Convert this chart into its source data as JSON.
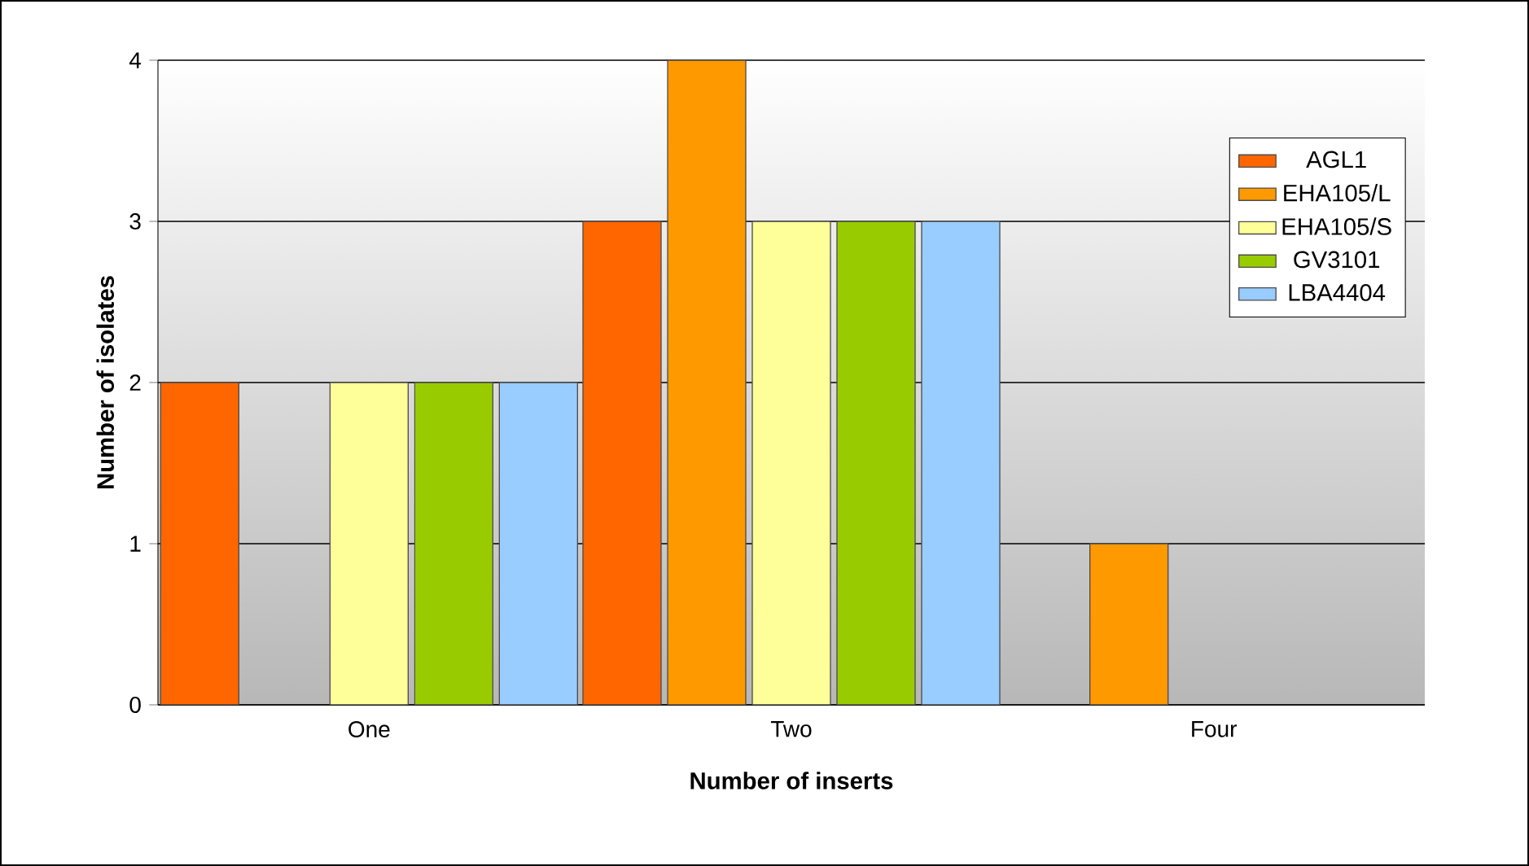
{
  "chart_data": {
    "type": "bar",
    "xlabel": "Number of inserts",
    "ylabel": "Number of isolates",
    "categories": [
      "One",
      "Two",
      "Four"
    ],
    "series": [
      {
        "name": "AGL1",
        "color": "#ff6600",
        "values": [
          2,
          3,
          null
        ]
      },
      {
        "name": "EHA105/L",
        "color": "#ff9900",
        "values": [
          null,
          4,
          1
        ]
      },
      {
        "name": "EHA105/S",
        "color": "#ffff99",
        "values": [
          2,
          3,
          null
        ]
      },
      {
        "name": "GV3101",
        "color": "#99cc00",
        "values": [
          2,
          3,
          null
        ]
      },
      {
        "name": "LBA4404",
        "color": "#99ccff",
        "values": [
          2,
          3,
          null
        ]
      }
    ],
    "ylim": [
      0,
      4
    ],
    "yticks": [
      0,
      1,
      2,
      3,
      4
    ],
    "grid": "y",
    "legend": "top right"
  }
}
